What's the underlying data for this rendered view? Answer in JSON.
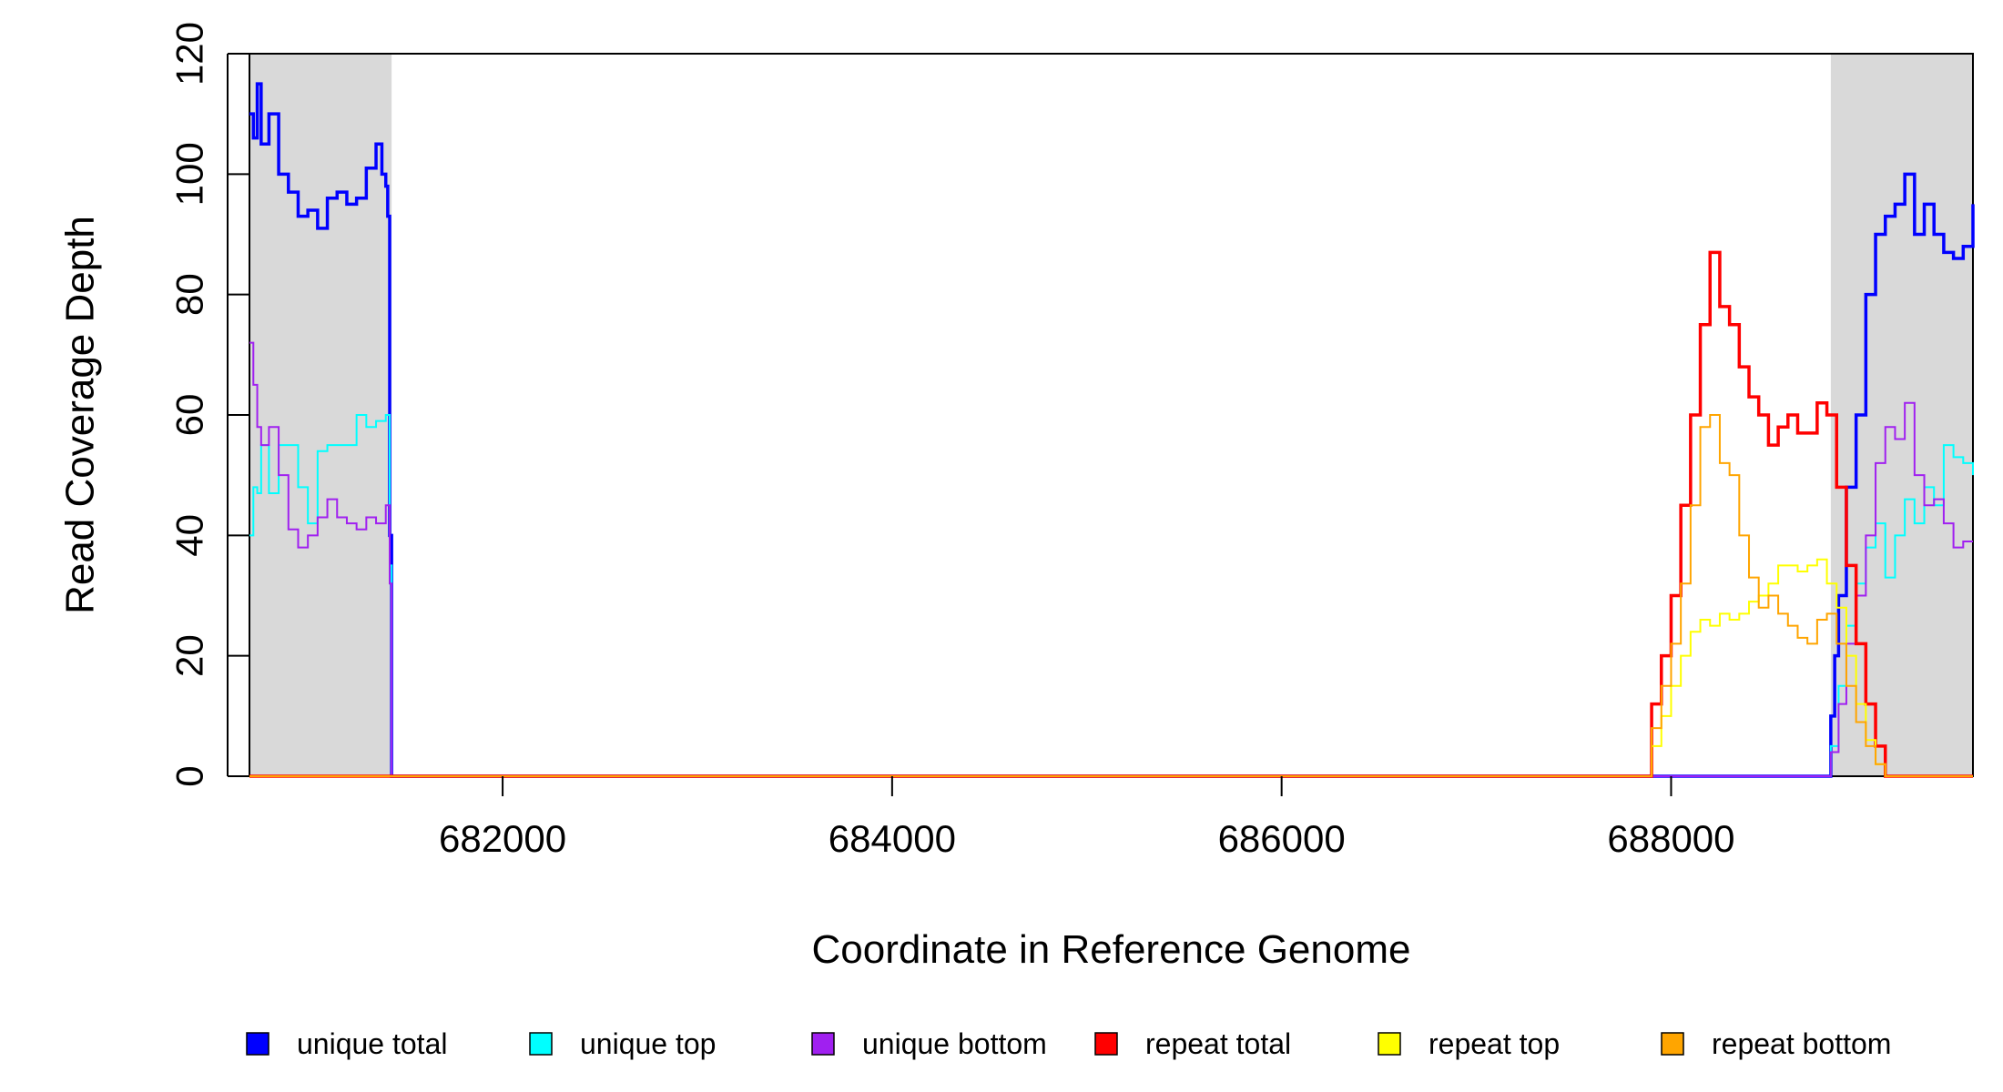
{
  "chart_data": {
    "type": "line",
    "title": "",
    "xlabel": "Coordinate in Reference Genome",
    "ylabel": "Read Coverage Depth",
    "xlim": [
      680700,
      689550
    ],
    "ylim": [
      0,
      120
    ],
    "x_ticks": [
      682000,
      684000,
      686000,
      688000
    ],
    "y_ticks": [
      0,
      20,
      40,
      60,
      80,
      100,
      120
    ],
    "shaded_regions": [
      {
        "x": [
          680700,
          681430
        ],
        "color": "#d9d9d9"
      },
      {
        "x": [
          688820,
          689550
        ],
        "color": "#d9d9d9"
      }
    ],
    "legend_position": "bottom",
    "series": [
      {
        "name": "unique total",
        "color": "#0000ff",
        "width": 3.5,
        "x": [
          680700,
          680720,
          680740,
          680760,
          680800,
          680850,
          680900,
          680950,
          681000,
          681050,
          681100,
          681150,
          681200,
          681250,
          681300,
          681350,
          681380,
          681400,
          681410,
          681420,
          681430,
          681440,
          681450,
          687000,
          688000,
          688800,
          688820,
          688840,
          688860,
          688900,
          688950,
          689000,
          689050,
          689100,
          689150,
          689200,
          689250,
          689300,
          689350,
          689400,
          689450,
          689500,
          689550
        ],
        "y": [
          110,
          106,
          115,
          105,
          110,
          100,
          97,
          93,
          94,
          91,
          96,
          97,
          95,
          96,
          101,
          105,
          100,
          98,
          93,
          40,
          0,
          0,
          0,
          0,
          0,
          0,
          10,
          20,
          30,
          48,
          60,
          80,
          90,
          93,
          95,
          100,
          90,
          95,
          90,
          87,
          86,
          88,
          95
        ]
      },
      {
        "name": "unique top",
        "color": "#00ffff",
        "width": 2,
        "x": [
          680700,
          680720,
          680740,
          680760,
          680800,
          680850,
          680900,
          680950,
          681000,
          681050,
          681100,
          681150,
          681200,
          681250,
          681300,
          681350,
          681400,
          681420,
          681430,
          681440,
          687000,
          688000,
          688800,
          688820,
          688860,
          688900,
          688950,
          689000,
          689050,
          689100,
          689150,
          689200,
          689250,
          689300,
          689350,
          689400,
          689450,
          689500,
          689550
        ],
        "y": [
          40,
          48,
          47,
          55,
          47,
          55,
          55,
          48,
          42,
          54,
          55,
          55,
          55,
          60,
          58,
          59,
          60,
          35,
          0,
          0,
          0,
          0,
          0,
          5,
          15,
          25,
          32,
          38,
          42,
          33,
          40,
          46,
          42,
          48,
          45,
          55,
          53,
          52,
          50
        ]
      },
      {
        "name": "unique bottom",
        "color": "#a020f0",
        "width": 2,
        "x": [
          680700,
          680720,
          680740,
          680760,
          680800,
          680850,
          680900,
          680950,
          681000,
          681050,
          681100,
          681150,
          681200,
          681250,
          681300,
          681350,
          681400,
          681420,
          681430,
          681440,
          687000,
          688000,
          688800,
          688820,
          688860,
          688900,
          688950,
          689000,
          689050,
          689100,
          689150,
          689200,
          689250,
          689300,
          689350,
          689400,
          689450,
          689500,
          689550
        ],
        "y": [
          72,
          65,
          58,
          55,
          58,
          50,
          41,
          38,
          40,
          43,
          46,
          43,
          42,
          41,
          43,
          42,
          45,
          32,
          0,
          0,
          0,
          0,
          0,
          4,
          12,
          22,
          30,
          40,
          52,
          58,
          56,
          62,
          50,
          45,
          46,
          42,
          38,
          39,
          39
        ]
      },
      {
        "name": "repeat total",
        "color": "#ff0000",
        "width": 3.5,
        "x": [
          680700,
          687850,
          687900,
          687950,
          688000,
          688050,
          688100,
          688150,
          688200,
          688250,
          688300,
          688350,
          688400,
          688450,
          688500,
          688550,
          688600,
          688650,
          688700,
          688750,
          688800,
          688850,
          688900,
          688950,
          689000,
          689050,
          689100,
          689150,
          689200,
          689550
        ],
        "y": [
          0,
          0,
          12,
          20,
          30,
          45,
          60,
          75,
          87,
          78,
          75,
          68,
          63,
          60,
          55,
          58,
          60,
          57,
          57,
          62,
          60,
          48,
          35,
          22,
          12,
          5,
          0,
          0,
          0,
          0
        ]
      },
      {
        "name": "repeat top",
        "color": "#ffff00",
        "width": 2,
        "x": [
          680700,
          687850,
          687900,
          687950,
          688000,
          688050,
          688100,
          688150,
          688200,
          688250,
          688300,
          688350,
          688400,
          688450,
          688500,
          688550,
          688600,
          688650,
          688700,
          688750,
          688800,
          688850,
          688900,
          688950,
          689000,
          689050,
          689100,
          689550
        ],
        "y": [
          0,
          0,
          5,
          10,
          15,
          20,
          24,
          26,
          25,
          27,
          26,
          27,
          29,
          30,
          32,
          35,
          35,
          34,
          35,
          36,
          32,
          28,
          20,
          12,
          6,
          2,
          0,
          0
        ]
      },
      {
        "name": "repeat bottom",
        "color": "#ffa500",
        "width": 2,
        "x": [
          680700,
          687850,
          687900,
          687950,
          688000,
          688050,
          688100,
          688150,
          688200,
          688250,
          688300,
          688350,
          688400,
          688450,
          688500,
          688550,
          688600,
          688650,
          688700,
          688750,
          688800,
          688850,
          688900,
          688950,
          689000,
          689050,
          689100,
          689550
        ],
        "y": [
          0,
          0,
          8,
          15,
          22,
          32,
          45,
          58,
          60,
          52,
          50,
          40,
          33,
          28,
          30,
          27,
          25,
          23,
          22,
          26,
          27,
          22,
          15,
          9,
          5,
          2,
          0,
          0
        ]
      }
    ]
  }
}
